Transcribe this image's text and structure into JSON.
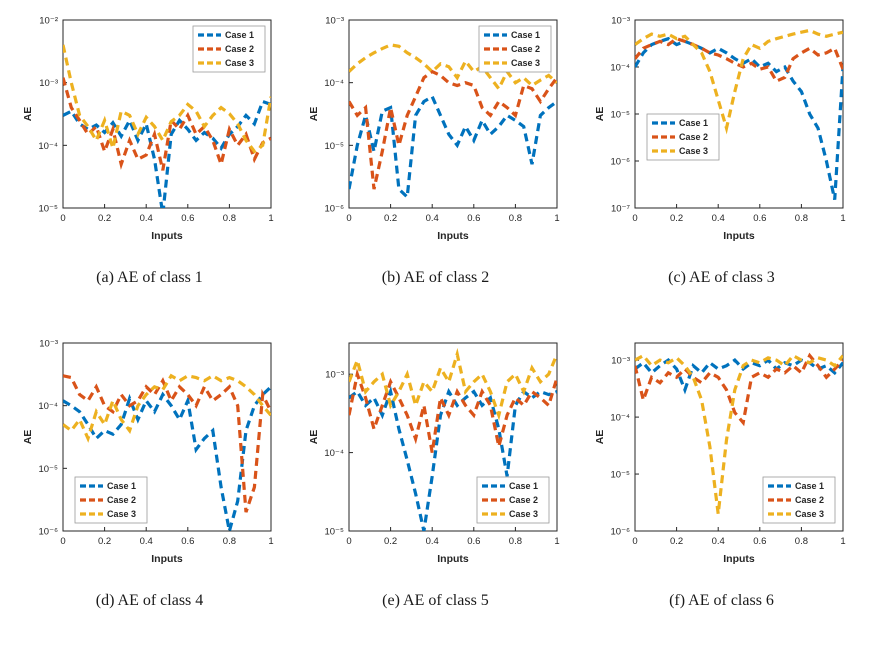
{
  "page": {
    "background": "#ffffff"
  },
  "colors": {
    "case1": "#0072BD",
    "case2": "#D95319",
    "case3": "#EDB120",
    "axes": "#262626"
  },
  "legend_labels": [
    "Case 1",
    "Case 2",
    "Case 3"
  ],
  "chart_data": [
    {
      "type": "line",
      "caption": "(a) AE of class 1",
      "xlabel": "Inputs",
      "ylabel": "AE",
      "xlim": [
        0,
        1
      ],
      "xticks": [
        0,
        0.2,
        0.4,
        0.6,
        0.8,
        1
      ],
      "yscale": "log",
      "ylim": [
        1e-05,
        0.01
      ],
      "yticks": [
        1e-05,
        0.0001,
        0.001,
        0.01
      ],
      "legend_pos": "top-right",
      "grid": false,
      "x": [
        0,
        0.04,
        0.08,
        0.12,
        0.16,
        0.2,
        0.24,
        0.28,
        0.32,
        0.36,
        0.4,
        0.44,
        0.48,
        0.52,
        0.56,
        0.6,
        0.64,
        0.68,
        0.72,
        0.76,
        0.8,
        0.84,
        0.88,
        0.92,
        0.96,
        1
      ],
      "series": [
        {
          "name": "Case 1",
          "color": "#0072BD",
          "values": [
            0.0003,
            0.00035,
            0.00022,
            0.00018,
            0.00021,
            0.00016,
            0.00023,
            0.00014,
            0.00025,
            0.00012,
            0.00022,
            6e-05,
            8e-06,
            0.00015,
            0.00025,
            0.00018,
            0.00012,
            0.00016,
            0.00013,
            9e-05,
            0.00015,
            0.0002,
            0.0003,
            0.00022,
            0.0005,
            0.00045
          ]
        },
        {
          "name": "Case 2",
          "color": "#D95319",
          "values": [
            0.0012,
            0.0004,
            0.00025,
            0.00015,
            0.0002,
            8e-05,
            0.00018,
            5e-05,
            0.00012,
            6e-05,
            7e-05,
            0.00015,
            4e-05,
            0.00025,
            0.00018,
            0.0003,
            0.00015,
            0.0002,
            0.00012,
            5e-05,
            0.00018,
            0.0001,
            0.00015,
            6e-05,
            0.00011,
            0.00013
          ]
        },
        {
          "name": "Case 3",
          "color": "#EDB120",
          "values": [
            0.004,
            0.001,
            0.0003,
            0.0002,
            0.00012,
            0.00025,
            9e-05,
            0.00035,
            0.0003,
            0.00015,
            0.00028,
            0.0002,
            0.00012,
            0.00024,
            0.0003,
            0.00045,
            0.00035,
            0.0002,
            0.0003,
            0.0004,
            0.00032,
            0.00022,
            0.00012,
            8e-05,
            0.0001,
            0.0006
          ]
        }
      ]
    },
    {
      "type": "line",
      "caption": "(b) AE of class 2",
      "xlabel": "Inputs",
      "ylabel": "AE",
      "xlim": [
        0,
        1
      ],
      "xticks": [
        0,
        0.2,
        0.4,
        0.6,
        0.8,
        1
      ],
      "yscale": "log",
      "ylim": [
        1e-06,
        0.001
      ],
      "yticks": [
        1e-06,
        1e-05,
        0.0001,
        0.001
      ],
      "legend_pos": "top-right",
      "grid": false,
      "x": [
        0,
        0.04,
        0.08,
        0.12,
        0.16,
        0.2,
        0.24,
        0.28,
        0.32,
        0.36,
        0.4,
        0.44,
        0.48,
        0.52,
        0.56,
        0.6,
        0.64,
        0.68,
        0.72,
        0.76,
        0.8,
        0.84,
        0.88,
        0.92,
        0.96,
        1
      ],
      "series": [
        {
          "name": "Case 1",
          "color": "#0072BD",
          "values": [
            2e-06,
            1e-05,
            3e-05,
            8e-06,
            3.5e-05,
            4e-05,
            2e-06,
            1.5e-06,
            3e-05,
            5e-05,
            6e-05,
            3e-05,
            1.5e-05,
            1e-05,
            2e-05,
            1.2e-05,
            2.5e-05,
            1.5e-05,
            2e-05,
            3e-05,
            2.5e-05,
            2e-05,
            5e-06,
            3e-05,
            4e-05,
            5e-05
          ]
        },
        {
          "name": "Case 2",
          "color": "#D95319",
          "values": [
            5e-05,
            3e-05,
            4e-05,
            2e-06,
            8e-06,
            4e-05,
            1e-05,
            3e-05,
            6e-05,
            0.00012,
            0.00015,
            0.00013,
            0.0001,
            9e-05,
            0.0001,
            9e-05,
            4e-05,
            3e-05,
            5e-05,
            4e-05,
            3e-05,
            9e-05,
            8e-05,
            5e-05,
            8e-05,
            0.00012
          ]
        },
        {
          "name": "Case 3",
          "color": "#EDB120",
          "values": [
            0.00015,
            0.0002,
            0.00025,
            0.0003,
            0.00035,
            0.0004,
            0.00038,
            0.0003,
            0.00025,
            0.0002,
            0.00015,
            0.0002,
            0.00018,
            0.00012,
            0.00022,
            0.00015,
            0.00018,
            0.00012,
            8e-05,
            0.00015,
            0.0001,
            0.00012,
            9e-05,
            0.00011,
            0.00013,
            0.0001
          ]
        }
      ]
    },
    {
      "type": "line",
      "caption": "(c) AE of class 3",
      "xlabel": "Inputs",
      "ylabel": "AE",
      "xlim": [
        0,
        1
      ],
      "xticks": [
        0,
        0.2,
        0.4,
        0.6,
        0.8,
        1
      ],
      "yscale": "log",
      "ylim": [
        1e-07,
        0.001
      ],
      "yticks": [
        1e-07,
        1e-06,
        1e-05,
        0.0001,
        0.001
      ],
      "legend_pos": "mid-left",
      "grid": false,
      "x": [
        0,
        0.04,
        0.08,
        0.12,
        0.16,
        0.2,
        0.24,
        0.28,
        0.32,
        0.36,
        0.4,
        0.44,
        0.48,
        0.52,
        0.56,
        0.6,
        0.64,
        0.68,
        0.72,
        0.76,
        0.8,
        0.84,
        0.88,
        0.92,
        0.96,
        1
      ],
      "series": [
        {
          "name": "Case 1",
          "color": "#0072BD",
          "values": [
            0.0001,
            0.0002,
            0.0003,
            0.00035,
            0.0004,
            0.0003,
            0.00035,
            0.0003,
            0.00025,
            0.0002,
            0.00025,
            0.0002,
            0.00015,
            0.00012,
            0.00015,
            0.0001,
            0.00012,
            8e-05,
            0.0001,
            5e-05,
            3e-05,
            1e-05,
            5e-06,
            1e-06,
            1.5e-07,
            0.0001
          ]
        },
        {
          "name": "Case 2",
          "color": "#D95319",
          "values": [
            0.00015,
            0.00025,
            0.0003,
            0.00035,
            0.0003,
            0.0004,
            0.00035,
            0.0003,
            0.00025,
            0.0002,
            0.00018,
            0.00015,
            0.00012,
            0.0001,
            0.00012,
            9e-05,
            0.0001,
            5e-05,
            6e-05,
            0.00015,
            0.0002,
            0.00025,
            0.00018,
            0.0002,
            0.00025,
            9e-05
          ]
        },
        {
          "name": "Case 3",
          "color": "#EDB120",
          "values": [
            0.0003,
            0.0004,
            0.0005,
            0.00045,
            0.0005,
            0.0004,
            0.00045,
            0.0003,
            0.0002,
            8e-05,
            2e-05,
            5e-06,
            3e-05,
            0.00015,
            0.0003,
            0.00025,
            0.00035,
            0.0004,
            0.00045,
            0.0005,
            0.00055,
            0.0006,
            0.0005,
            0.00045,
            0.0005,
            0.00055
          ]
        }
      ]
    },
    {
      "type": "line",
      "caption": "(d) AE of class 4",
      "xlabel": "Inputs",
      "ylabel": "AE",
      "xlim": [
        0,
        1
      ],
      "xticks": [
        0,
        0.2,
        0.4,
        0.6,
        0.8,
        1
      ],
      "yscale": "log",
      "ylim": [
        1e-06,
        0.001
      ],
      "yticks": [
        1e-06,
        1e-05,
        0.0001,
        0.001
      ],
      "legend_pos": "bottom-left",
      "grid": false,
      "x": [
        0,
        0.04,
        0.08,
        0.12,
        0.16,
        0.2,
        0.24,
        0.28,
        0.32,
        0.36,
        0.4,
        0.44,
        0.48,
        0.52,
        0.56,
        0.6,
        0.64,
        0.68,
        0.72,
        0.76,
        0.8,
        0.84,
        0.88,
        0.92,
        0.96,
        1
      ],
      "series": [
        {
          "name": "Case 1",
          "color": "#0072BD",
          "values": [
            0.00012,
            0.0001,
            8e-05,
            5e-05,
            3e-05,
            4e-05,
            3.5e-05,
            5e-05,
            0.00013,
            6e-05,
            0.00012,
            8e-05,
            0.00015,
            0.0001,
            6e-05,
            0.00012,
            2e-05,
            3e-05,
            4e-05,
            5e-06,
            1e-06,
            3e-06,
            4e-05,
            0.0001,
            0.00015,
            0.0002
          ]
        },
        {
          "name": "Case 2",
          "color": "#D95319",
          "values": [
            0.0003,
            0.00028,
            0.00015,
            0.00012,
            0.0002,
            0.0001,
            8e-05,
            0.00015,
            0.0001,
            0.00012,
            0.0002,
            0.00015,
            0.00025,
            0.00012,
            0.0002,
            0.00015,
            0.0001,
            0.0002,
            0.00012,
            0.00015,
            0.0002,
            0.0001,
            2e-06,
            5e-06,
            0.00015,
            8e-05
          ]
        },
        {
          "name": "Case 3",
          "color": "#EDB120",
          "values": [
            5e-05,
            4e-05,
            6e-05,
            3e-05,
            8e-05,
            5e-05,
            0.00012,
            6e-05,
            4e-05,
            0.0001,
            0.00015,
            0.0002,
            0.00018,
            0.0003,
            0.00025,
            0.0003,
            0.00028,
            0.00025,
            0.0003,
            0.00025,
            0.00028,
            0.00025,
            0.0002,
            0.00015,
            0.0001,
            7e-05
          ]
        }
      ]
    },
    {
      "type": "line",
      "caption": "(e) AE of class 5",
      "xlabel": "Inputs",
      "ylabel": "AE",
      "xlim": [
        0,
        1
      ],
      "xticks": [
        0,
        0.2,
        0.4,
        0.6,
        0.8,
        1
      ],
      "yscale": "log",
      "ylim": [
        1e-05,
        0.0025
      ],
      "yticks": [
        1e-05,
        0.0001,
        0.001
      ],
      "legend_pos": "bottom-right",
      "grid": false,
      "x": [
        0,
        0.04,
        0.08,
        0.12,
        0.16,
        0.2,
        0.24,
        0.28,
        0.32,
        0.36,
        0.4,
        0.44,
        0.48,
        0.52,
        0.56,
        0.6,
        0.64,
        0.68,
        0.72,
        0.76,
        0.8,
        0.84,
        0.88,
        0.92,
        0.96,
        1
      ],
      "series": [
        {
          "name": "Case 1",
          "color": "#0072BD",
          "values": [
            0.0005,
            0.0006,
            0.0004,
            0.0005,
            0.0003,
            0.0006,
            0.0002,
            8e-05,
            3e-05,
            1e-05,
            5e-05,
            0.0003,
            0.0006,
            0.0004,
            0.0005,
            0.0006,
            0.0004,
            0.0005,
            0.0002,
            5e-05,
            0.0004,
            0.0006,
            0.0005,
            0.0006,
            0.00055,
            0.0006
          ]
        },
        {
          "name": "Case 2",
          "color": "#D95319",
          "values": [
            0.0003,
            0.001,
            0.0005,
            0.0002,
            0.0004,
            0.0008,
            0.0005,
            0.0003,
            0.00015,
            0.0004,
            0.0001,
            0.0005,
            0.0003,
            0.0006,
            0.0004,
            0.0003,
            0.0006,
            0.0004,
            0.00012,
            0.0003,
            0.0005,
            0.0004,
            0.0006,
            0.0005,
            0.0004,
            0.0009
          ]
        },
        {
          "name": "Case 3",
          "color": "#EDB120",
          "values": [
            0.0008,
            0.0015,
            0.0006,
            0.0008,
            0.001,
            0.0004,
            0.0006,
            0.001,
            0.0004,
            0.0008,
            0.0006,
            0.0012,
            0.0008,
            0.0018,
            0.0006,
            0.0008,
            0.001,
            0.0006,
            0.0003,
            0.0008,
            0.001,
            0.0006,
            0.0012,
            0.0008,
            0.001,
            0.0018
          ]
        }
      ]
    },
    {
      "type": "line",
      "caption": "(f) AE of class 6",
      "xlabel": "Inputs",
      "ylabel": "AE",
      "xlim": [
        0,
        1
      ],
      "xticks": [
        0,
        0.2,
        0.4,
        0.6,
        0.8,
        1
      ],
      "yscale": "log",
      "ylim": [
        1e-06,
        0.002
      ],
      "yticks": [
        1e-06,
        1e-05,
        0.0001,
        0.001
      ],
      "legend_pos": "bottom-right",
      "grid": false,
      "x": [
        0,
        0.04,
        0.08,
        0.12,
        0.16,
        0.2,
        0.24,
        0.28,
        0.32,
        0.36,
        0.4,
        0.44,
        0.48,
        0.52,
        0.56,
        0.6,
        0.64,
        0.68,
        0.72,
        0.76,
        0.8,
        0.84,
        0.88,
        0.92,
        0.96,
        1
      ],
      "series": [
        {
          "name": "Case 1",
          "color": "#0072BD",
          "values": [
            0.0007,
            0.0009,
            0.0006,
            0.0008,
            0.001,
            0.0007,
            0.0003,
            0.0008,
            0.0006,
            0.0009,
            0.0007,
            0.0008,
            0.001,
            0.0007,
            0.0009,
            0.0008,
            0.001,
            0.0007,
            0.0009,
            0.0008,
            0.001,
            0.0009,
            0.0007,
            0.0008,
            0.0006,
            0.0009
          ]
        },
        {
          "name": "Case 2",
          "color": "#D95319",
          "values": [
            0.0008,
            0.0002,
            0.0005,
            0.0004,
            0.0006,
            0.0005,
            0.0007,
            0.0005,
            0.0004,
            0.0006,
            0.0005,
            0.0003,
            0.00012,
            8e-05,
            0.0005,
            0.0006,
            0.0005,
            0.0007,
            0.0006,
            0.0008,
            0.0006,
            0.0012,
            0.0008,
            0.0005,
            0.0007,
            0.001
          ]
        },
        {
          "name": "Case 3",
          "color": "#EDB120",
          "values": [
            0.001,
            0.0012,
            0.0008,
            0.001,
            0.0009,
            0.0011,
            0.0008,
            0.0005,
            0.0002,
            3e-05,
            2e-06,
            4e-05,
            0.0003,
            0.0008,
            0.001,
            0.0009,
            0.0011,
            0.001,
            0.0008,
            0.0012,
            0.001,
            0.0009,
            0.0011,
            0.001,
            0.0008,
            0.0012
          ]
        }
      ]
    }
  ]
}
